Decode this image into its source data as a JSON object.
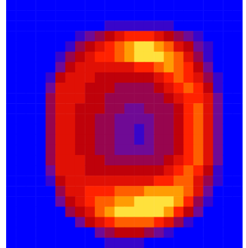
{
  "chart_data": {
    "type": "heatmap",
    "tick_labels": false,
    "cells": [
      [
        0,
        0,
        0,
        0,
        0,
        0,
        0,
        0,
        0,
        0,
        0,
        0,
        0,
        0,
        0,
        0,
        0,
        0,
        0,
        0,
        0,
        0,
        0,
        0
      ],
      [
        0,
        0,
        0,
        0,
        0,
        0,
        0,
        0,
        0,
        0,
        0,
        0,
        0,
        0,
        0,
        0,
        0,
        0,
        0,
        0,
        0,
        0,
        0,
        0
      ],
      [
        0,
        0,
        0,
        0,
        0,
        0,
        0,
        0,
        0,
        0,
        1,
        1,
        1,
        1,
        1,
        1,
        1,
        0,
        0,
        0,
        0,
        0,
        0,
        0
      ],
      [
        0,
        0,
        0,
        0,
        0,
        0,
        0,
        1,
        2,
        3,
        4,
        5,
        6,
        6,
        6,
        5,
        4,
        3,
        2,
        1,
        0,
        0,
        0,
        0
      ],
      [
        0,
        0,
        0,
        0,
        0,
        0,
        1,
        3,
        4,
        5,
        6,
        7,
        8,
        9,
        9,
        8,
        7,
        5,
        4,
        2,
        1,
        0,
        0,
        0
      ],
      [
        0,
        0,
        0,
        0,
        0,
        1,
        3,
        4,
        5,
        6,
        6,
        7,
        8,
        9,
        9,
        9,
        8,
        7,
        5,
        3,
        1,
        0,
        0,
        0
      ],
      [
        0,
        0,
        0,
        0,
        0,
        2,
        4,
        5,
        5,
        5,
        5,
        5,
        5,
        6,
        6,
        7,
        8,
        7,
        6,
        4,
        2,
        0,
        0,
        0
      ],
      [
        0,
        0,
        0,
        0,
        1,
        4,
        5,
        5,
        5,
        4,
        4,
        4,
        4,
        4,
        4,
        5,
        6,
        7,
        6,
        5,
        3,
        1,
        0,
        0
      ],
      [
        0,
        0,
        0,
        0,
        2,
        5,
        5,
        5,
        4,
        4,
        4,
        3,
        3,
        3,
        3,
        4,
        5,
        6,
        7,
        6,
        4,
        1,
        0,
        0
      ],
      [
        0,
        0,
        0,
        0,
        3,
        5,
        5,
        5,
        4,
        4,
        3,
        3,
        3,
        3,
        3,
        3,
        4,
        5,
        6,
        6,
        5,
        2,
        0,
        0
      ],
      [
        0,
        0,
        0,
        0,
        3,
        5,
        5,
        4,
        4,
        4,
        3,
        3,
        2,
        2,
        3,
        3,
        3,
        4,
        6,
        7,
        5,
        2,
        0,
        0
      ],
      [
        0,
        0,
        0,
        0,
        3,
        5,
        5,
        4,
        4,
        3,
        3,
        2,
        2,
        2,
        2,
        3,
        3,
        4,
        6,
        7,
        5,
        2,
        0,
        0
      ],
      [
        0,
        0,
        0,
        0,
        3,
        5,
        5,
        4,
        4,
        3,
        3,
        2,
        2,
        1,
        2,
        3,
        3,
        4,
        6,
        7,
        5,
        2,
        0,
        0
      ],
      [
        0,
        0,
        0,
        0,
        3,
        5,
        5,
        4,
        4,
        3,
        3,
        2,
        2,
        1,
        2,
        3,
        3,
        4,
        6,
        7,
        5,
        2,
        0,
        0
      ],
      [
        0,
        0,
        0,
        0,
        3,
        5,
        5,
        4,
        4,
        3,
        3,
        2,
        2,
        2,
        2,
        3,
        3,
        4,
        6,
        7,
        5,
        2,
        0,
        0
      ],
      [
        0,
        0,
        0,
        0,
        3,
        5,
        5,
        5,
        4,
        4,
        3,
        3,
        3,
        3,
        3,
        3,
        4,
        5,
        6,
        7,
        5,
        2,
        0,
        0
      ],
      [
        0,
        0,
        0,
        0,
        2,
        5,
        5,
        5,
        4,
        4,
        4,
        4,
        4,
        4,
        4,
        4,
        5,
        6,
        7,
        6,
        4,
        1,
        0,
        0
      ],
      [
        0,
        0,
        0,
        0,
        1,
        4,
        5,
        5,
        5,
        5,
        5,
        5,
        5,
        5,
        5,
        6,
        6,
        7,
        7,
        5,
        3,
        1,
        0,
        0
      ],
      [
        0,
        0,
        0,
        0,
        0,
        3,
        5,
        5,
        6,
        6,
        6,
        7,
        7,
        7,
        8,
        8,
        8,
        8,
        7,
        5,
        2,
        0,
        0,
        0
      ],
      [
        0,
        0,
        0,
        0,
        0,
        2,
        4,
        5,
        6,
        7,
        7,
        8,
        8,
        9,
        9,
        9,
        9,
        8,
        6,
        3,
        1,
        0,
        0,
        0
      ],
      [
        0,
        0,
        0,
        0,
        0,
        0,
        3,
        4,
        5,
        7,
        8,
        9,
        9,
        9,
        9,
        9,
        8,
        6,
        4,
        2,
        0,
        0,
        0,
        0
      ],
      [
        0,
        0,
        0,
        0,
        0,
        0,
        0,
        2,
        4,
        5,
        6,
        7,
        7,
        7,
        7,
        6,
        5,
        3,
        1,
        0,
        0,
        0,
        0,
        0
      ],
      [
        0,
        0,
        0,
        0,
        0,
        0,
        0,
        0,
        0,
        2,
        3,
        4,
        4,
        4,
        3,
        2,
        1,
        0,
        0,
        0,
        0,
        0,
        0,
        0
      ],
      [
        0,
        0,
        0,
        0,
        0,
        0,
        0,
        0,
        0,
        0,
        1,
        1,
        1,
        1,
        0,
        0,
        0,
        0,
        0,
        0,
        0,
        0,
        0,
        0
      ]
    ]
  }
}
